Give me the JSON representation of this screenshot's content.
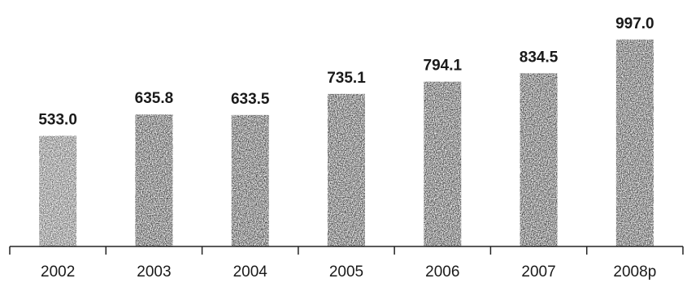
{
  "chart_data": {
    "type": "bar",
    "categories": [
      "2002",
      "2003",
      "2004",
      "2005",
      "2006",
      "2007",
      "2008p"
    ],
    "values": [
      533.0,
      635.8,
      633.5,
      735.1,
      794.1,
      834.5,
      997.0
    ],
    "value_labels": [
      "533.0",
      "635.8",
      "633.5",
      "735.1",
      "794.1",
      "834.5",
      "997.0"
    ],
    "title": "",
    "xlabel": "",
    "ylabel": "",
    "ylim": [
      0,
      1000
    ],
    "grid": false,
    "legend": "none",
    "bar_color": "#2b2b2b"
  }
}
